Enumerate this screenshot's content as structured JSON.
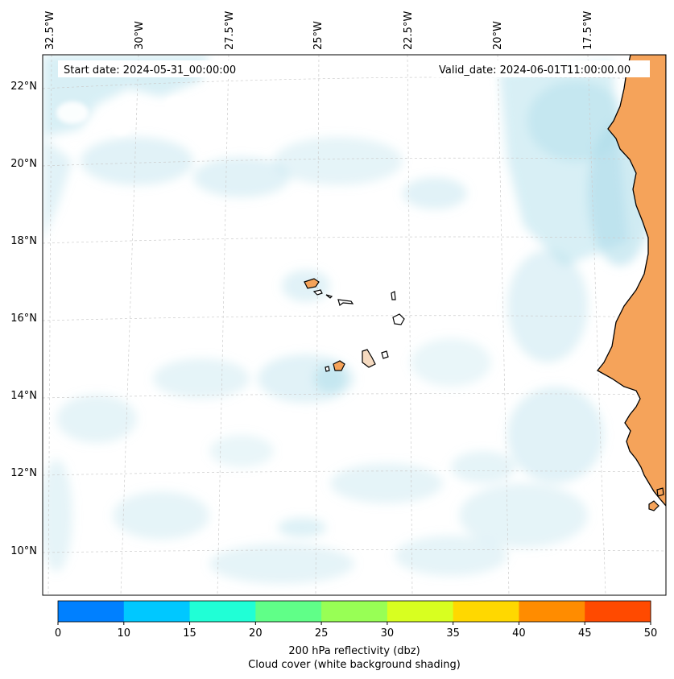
{
  "map": {
    "start_date_text": "Start date: 2024-05-31_00:00:00",
    "valid_date_text": "Valid_date: 2024-06-01T11:00:00.00",
    "lon_labels": [
      "32.5°W",
      "30°W",
      "27.5°W",
      "25°W",
      "22.5°W",
      "20°W",
      "17.5°W"
    ],
    "lat_labels": [
      "22°N",
      "20°N",
      "18°N",
      "16°N",
      "14°N",
      "12°N",
      "10°N"
    ],
    "colors": {
      "land": "#f5a35a",
      "coast": "#000000",
      "cloud": "#a9dbe9",
      "grid": "#cccccc"
    }
  },
  "colorbar": {
    "ticks": [
      "0",
      "10",
      "15",
      "20",
      "25",
      "30",
      "35",
      "40",
      "45",
      "50"
    ],
    "colors": [
      "#0080ff",
      "#00c8ff",
      "#20ffd6",
      "#60ff88",
      "#98ff55",
      "#d8ff20",
      "#ffd800",
      "#ff8c00",
      "#ff4a00"
    ],
    "label_line1": "200 hPa reflectivity (dbz)",
    "label_line2": "Cloud cover (white background shading)"
  }
}
